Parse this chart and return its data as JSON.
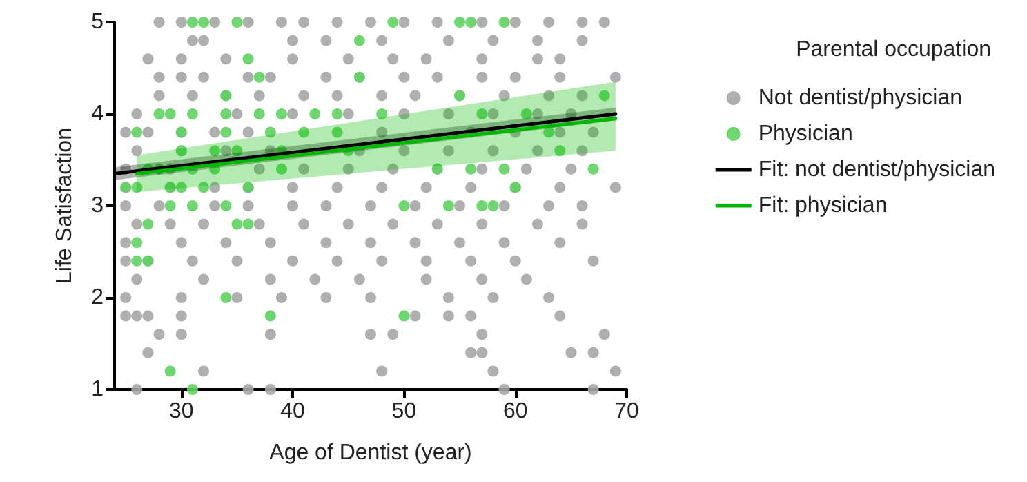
{
  "chart_data": {
    "type": "scatter",
    "xlabel": "Age of Dentist (year)",
    "ylabel": "Life Satisfaction",
    "legend_title": "Parental occupation",
    "legend": "right",
    "grid": false,
    "marker": "circle",
    "xlim": [
      24,
      70
    ],
    "xticks": [
      30,
      40,
      50,
      60,
      70
    ],
    "ylim": [
      1,
      5
    ],
    "yticks": [
      1,
      2,
      3,
      4,
      5
    ],
    "series": [
      {
        "name": "Not dentist/physician",
        "color": "#a6a6a6",
        "x": [
          28,
          30,
          33,
          36,
          39,
          41,
          44,
          47,
          50,
          53,
          57,
          60,
          63,
          66,
          68,
          31,
          32,
          40,
          43,
          48,
          54,
          58,
          62,
          66,
          27,
          30,
          34,
          40,
          45,
          49,
          52,
          57,
          62,
          64,
          28,
          30,
          32,
          36,
          38,
          43,
          46,
          50,
          53,
          57,
          60,
          64,
          69,
          28,
          31,
          34,
          37,
          41,
          44,
          48,
          51,
          55,
          59,
          63,
          66,
          26,
          35,
          40,
          45,
          50,
          54,
          58,
          62,
          65,
          25,
          27,
          30,
          33,
          36,
          48,
          56,
          60,
          64,
          67,
          26,
          30,
          34,
          38,
          46,
          50,
          54,
          58,
          62,
          66,
          25,
          29,
          37,
          41,
          45,
          49,
          53,
          57,
          61,
          65,
          25,
          29,
          33,
          36,
          40,
          44,
          48,
          52,
          56,
          60,
          64,
          69,
          25,
          28,
          33,
          36,
          40,
          43,
          47,
          51,
          55,
          59,
          63,
          66,
          26,
          29,
          32,
          37,
          41,
          45,
          49,
          53,
          57,
          62,
          66,
          25,
          30,
          34,
          38,
          43,
          47,
          51,
          55,
          59,
          64,
          25,
          27,
          31,
          35,
          40,
          44,
          48,
          52,
          56,
          60,
          67,
          26,
          32,
          38,
          42,
          46,
          52,
          57,
          61,
          25,
          30,
          35,
          39,
          43,
          47,
          54,
          58,
          63,
          25,
          26,
          27,
          30,
          51,
          54,
          56,
          64,
          28,
          30,
          38,
          47,
          49,
          57,
          68,
          27,
          56,
          57,
          65,
          67,
          32,
          48,
          58,
          69,
          26,
          36,
          38,
          59,
          67
        ],
        "values": [
          5,
          5,
          5,
          5,
          5,
          5,
          5,
          5,
          5,
          5,
          5,
          5,
          5,
          5,
          5,
          4.8,
          4.8,
          4.8,
          4.8,
          4.8,
          4.8,
          4.8,
          4.8,
          4.8,
          4.6,
          4.6,
          4.6,
          4.6,
          4.6,
          4.6,
          4.6,
          4.6,
          4.6,
          4.6,
          4.4,
          4.4,
          4.4,
          4.4,
          4.4,
          4.4,
          4.4,
          4.4,
          4.4,
          4.4,
          4.4,
          4.4,
          4.4,
          4.2,
          4.2,
          4.2,
          4.2,
          4.2,
          4.2,
          4.2,
          4.2,
          4.2,
          4.2,
          4.2,
          4.2,
          4,
          4,
          4,
          4,
          4,
          4,
          4,
          4,
          4,
          3.8,
          3.8,
          3.8,
          3.8,
          3.8,
          3.8,
          3.8,
          3.8,
          3.8,
          3.8,
          3.6,
          3.6,
          3.6,
          3.6,
          3.6,
          3.6,
          3.6,
          3.6,
          3.6,
          3.6,
          3.4,
          3.4,
          3.4,
          3.4,
          3.4,
          3.4,
          3.4,
          3.4,
          3.4,
          3.4,
          3.2,
          3.2,
          3.2,
          3.2,
          3.2,
          3.2,
          3.2,
          3.2,
          3.2,
          3.2,
          3.2,
          3.2,
          3,
          3,
          3,
          3,
          3,
          3,
          3,
          3,
          3,
          3,
          3,
          3,
          2.8,
          2.8,
          2.8,
          2.8,
          2.8,
          2.8,
          2.8,
          2.8,
          2.8,
          2.8,
          2.8,
          2.6,
          2.6,
          2.6,
          2.6,
          2.6,
          2.6,
          2.6,
          2.6,
          2.6,
          2.6,
          2.4,
          2.4,
          2.4,
          2.4,
          2.4,
          2.4,
          2.4,
          2.4,
          2.4,
          2.4,
          2.4,
          2.2,
          2.2,
          2.2,
          2.2,
          2.2,
          2.2,
          2.2,
          2.2,
          2,
          2,
          2,
          2,
          2,
          2,
          2,
          2,
          2,
          1.8,
          1.8,
          1.8,
          1.8,
          1.8,
          1.8,
          1.8,
          1.8,
          1.6,
          1.6,
          1.6,
          1.6,
          1.6,
          1.6,
          1.6,
          1.4,
          1.4,
          1.4,
          1.4,
          1.4,
          1.2,
          1.2,
          1.2,
          1.2,
          1,
          1,
          1,
          1,
          1
        ]
      },
      {
        "name": "Physician",
        "color": "#5fd35f",
        "x": [
          31,
          32,
          35,
          49,
          55,
          56,
          59,
          46,
          36,
          37,
          46,
          34,
          55,
          68,
          28,
          29,
          31,
          34,
          37,
          39,
          42,
          44,
          48,
          57,
          61,
          26,
          30,
          34,
          38,
          41,
          44,
          63,
          30,
          33,
          35,
          39,
          45,
          64,
          27,
          28,
          31,
          33,
          39,
          53,
          56,
          59,
          67,
          25,
          26,
          29,
          30,
          32,
          36,
          60,
          29,
          31,
          34,
          50,
          54,
          57,
          58,
          27,
          35,
          36,
          26,
          26,
          27,
          34,
          38,
          50,
          29,
          31
        ],
        "values": [
          5,
          5,
          5,
          5,
          5,
          5,
          5,
          4.8,
          4.6,
          4.4,
          4.4,
          4.2,
          4.2,
          4.2,
          4,
          4,
          4,
          4,
          4,
          4,
          4,
          4,
          4,
          4,
          4,
          3.8,
          3.8,
          3.8,
          3.8,
          3.8,
          3.8,
          3.8,
          3.6,
          3.6,
          3.6,
          3.6,
          3.6,
          3.6,
          3.4,
          3.4,
          3.4,
          3.4,
          3.4,
          3.4,
          3.4,
          3.4,
          3.4,
          3.2,
          3.2,
          3.2,
          3.2,
          3.2,
          3.2,
          3.2,
          3,
          3,
          3,
          3,
          3,
          3,
          3,
          2.8,
          2.8,
          2.8,
          2.6,
          2.4,
          2.4,
          2,
          1.8,
          1.8,
          1.2,
          1
        ]
      },
      {
        "name": "Fit: not dentist/physician",
        "type": "line",
        "marker": "none",
        "color": "#000000",
        "x": [
          24,
          69
        ],
        "values": [
          3.35,
          4.0
        ],
        "lower": [
          3.28,
          3.93
        ],
        "upper": [
          3.42,
          4.07
        ]
      },
      {
        "name": "Fit: physician",
        "type": "line",
        "marker": "none",
        "color": "#00b800",
        "x": [
          26,
          69
        ],
        "values": [
          3.35,
          3.95
        ],
        "lower": [
          3.15,
          3.6
        ],
        "upper": [
          3.55,
          4.35
        ]
      }
    ]
  }
}
